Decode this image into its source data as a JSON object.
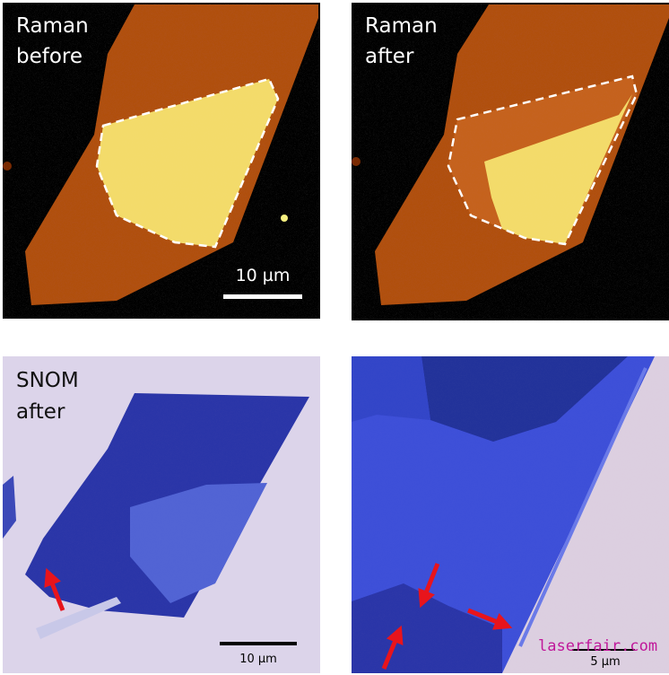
{
  "panels": [
    {
      "label": [
        "Raman",
        "before"
      ],
      "scale_bar": "10 µm"
    },
    {
      "label": [
        "Raman",
        "after"
      ]
    },
    {
      "label": [
        "SNOM",
        "after"
      ],
      "scale_bar": "10 µm"
    },
    {
      "scale_bar": "5 µm"
    }
  ],
  "watermark": "laserfair.com"
}
